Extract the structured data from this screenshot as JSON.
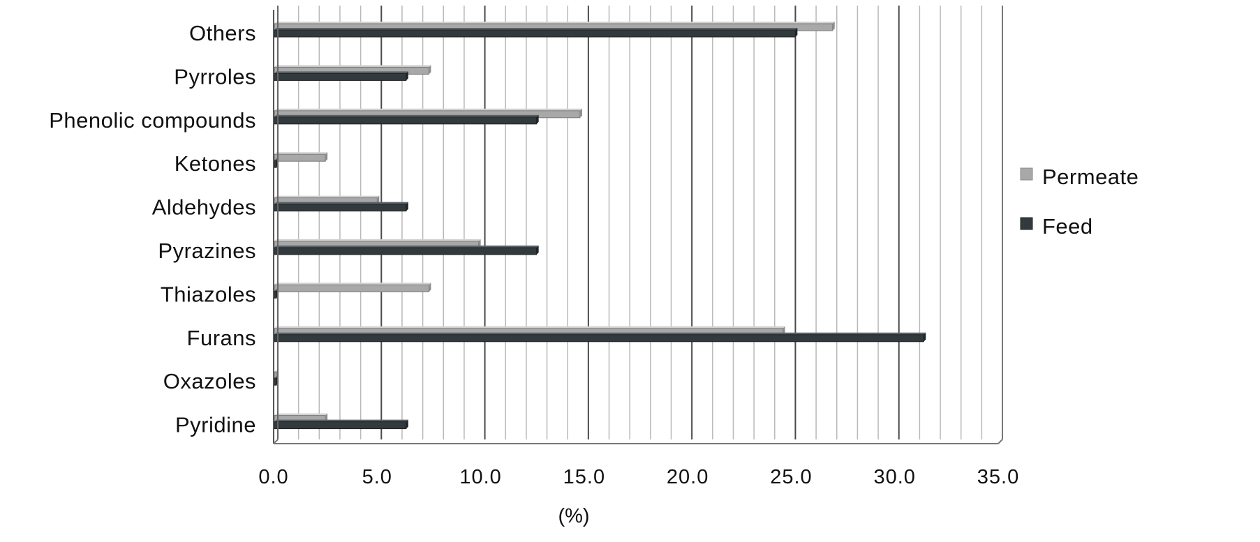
{
  "chart_data": {
    "type": "bar",
    "orientation": "horizontal",
    "categories": [
      "Others",
      "Pyrroles",
      "Phenolic compounds",
      "Ketones",
      "Aldehydes",
      "Pyrazines",
      "Thiazoles",
      "Furans",
      "Oxazoles",
      "Pyridine"
    ],
    "series": [
      {
        "name": "Permeate",
        "color": "#a8a8a8",
        "values": [
          27.0,
          7.5,
          14.8,
          2.5,
          5.0,
          9.9,
          7.5,
          24.6,
          0.1,
          2.5
        ]
      },
      {
        "name": "Feed",
        "color": "#333a3e",
        "values": [
          25.2,
          6.4,
          12.7,
          0.1,
          6.4,
          12.7,
          0.1,
          31.4,
          0.1,
          6.4
        ]
      }
    ],
    "xlabel": "(%)",
    "xlim": [
      0,
      35
    ],
    "x_ticks": [
      "0.0",
      "5.0",
      "10.0",
      "15.0",
      "20.0",
      "25.0",
      "30.0",
      "35.0"
    ],
    "x_tick_values": [
      0,
      5,
      10,
      15,
      20,
      25,
      30,
      35
    ],
    "grid": true,
    "legend": "right"
  }
}
